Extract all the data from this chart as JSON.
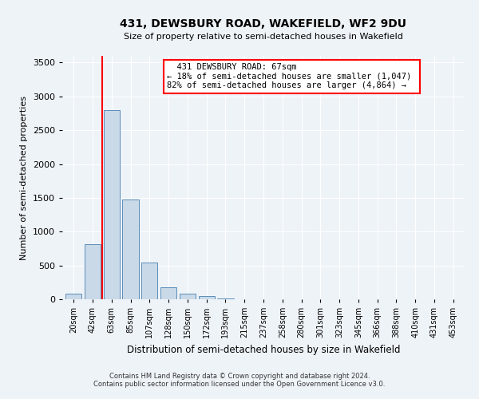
{
  "title1": "431, DEWSBURY ROAD, WAKEFIELD, WF2 9DU",
  "title2": "Size of property relative to semi-detached houses in Wakefield",
  "xlabel": "Distribution of semi-detached houses by size in Wakefield",
  "ylabel": "Number of semi-detached properties",
  "footer1": "Contains HM Land Registry data © Crown copyright and database right 2024.",
  "footer2": "Contains public sector information licensed under the Open Government Licence v3.0.",
  "annotation_line1": "431 DEWSBURY ROAD: 67sqm",
  "annotation_line2": "← 18% of semi-detached houses are smaller (1,047)",
  "annotation_line3": "82% of semi-detached houses are larger (4,864) →",
  "categories": [
    "20sqm",
    "42sqm",
    "63sqm",
    "85sqm",
    "107sqm",
    "128sqm",
    "150sqm",
    "172sqm",
    "193sqm",
    "215sqm",
    "237sqm",
    "258sqm",
    "280sqm",
    "301sqm",
    "323sqm",
    "345sqm",
    "366sqm",
    "388sqm",
    "410sqm",
    "431sqm",
    "453sqm"
  ],
  "values": [
    80,
    820,
    2800,
    1480,
    540,
    175,
    85,
    45,
    15,
    0,
    0,
    0,
    0,
    0,
    0,
    0,
    0,
    0,
    0,
    0,
    0
  ],
  "bar_color": "#c9d9e8",
  "bar_edge_color": "#5b8db8",
  "vline_color": "red",
  "ylim": [
    0,
    3600
  ],
  "yticks": [
    0,
    500,
    1000,
    1500,
    2000,
    2500,
    3000,
    3500
  ],
  "bg_color": "#eef3f8",
  "grid_color": "white",
  "annotation_box_color": "white",
  "annotation_border_color": "red"
}
